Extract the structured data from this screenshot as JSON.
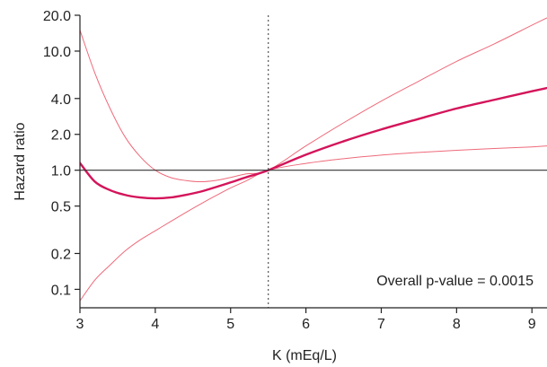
{
  "chart_data": {
    "type": "line",
    "xlabel": "K (mEq/L)",
    "ylabel": "Hazard ratio",
    "x_scale": "linear",
    "y_scale": "log",
    "xlim": [
      3,
      9.2
    ],
    "ylim": [
      0.07,
      20
    ],
    "x_ticks": [
      3,
      4,
      5,
      6,
      7,
      8,
      9
    ],
    "x_tick_labels": [
      "3",
      "4",
      "5",
      "6",
      "7",
      "8",
      "9"
    ],
    "y_ticks": [
      0.1,
      0.2,
      0.5,
      1.0,
      2.0,
      4.0,
      10.0,
      20.0
    ],
    "y_tick_labels": [
      "0.1",
      "0.2",
      "0.5",
      "1.0",
      "2.0",
      "4.0",
      "10.0",
      "20.0"
    ],
    "reference_line": {
      "y": 1.0
    },
    "vertical_reference": {
      "x": 5.5,
      "style": "dotted"
    },
    "annotation": "Overall p-value = 0.0015",
    "grid": false,
    "colors": {
      "estimate": "#d4145a",
      "ci": "#ee6a7a",
      "reference": "#333333",
      "axis": "#222222"
    },
    "series": [
      {
        "role": "estimate",
        "x": [
          3.0,
          3.2,
          3.4,
          3.6,
          3.8,
          4.0,
          4.2,
          4.4,
          4.6,
          4.8,
          5.0,
          5.2,
          5.5,
          6.0,
          6.5,
          7.0,
          7.5,
          8.0,
          8.5,
          9.0,
          9.2
        ],
        "y": [
          1.15,
          0.8,
          0.68,
          0.62,
          0.59,
          0.58,
          0.59,
          0.62,
          0.66,
          0.72,
          0.79,
          0.87,
          1.0,
          1.35,
          1.75,
          2.2,
          2.7,
          3.3,
          3.9,
          4.6,
          4.9
        ]
      },
      {
        "role": "ci-upper",
        "x": [
          3.0,
          3.2,
          3.4,
          3.6,
          3.8,
          4.0,
          4.2,
          4.4,
          4.6,
          4.8,
          5.0,
          5.2,
          5.5,
          6.0,
          6.5,
          7.0,
          7.5,
          8.0,
          8.5,
          9.0,
          9.2
        ],
        "y": [
          15.0,
          6.5,
          3.3,
          1.9,
          1.3,
          1.0,
          0.87,
          0.82,
          0.8,
          0.82,
          0.87,
          0.93,
          1.0,
          1.6,
          2.5,
          3.8,
          5.6,
          8.2,
          11.5,
          16.5,
          19.0
        ]
      },
      {
        "role": "ci-lower",
        "x": [
          3.0,
          3.2,
          3.4,
          3.6,
          3.8,
          4.0,
          4.2,
          4.4,
          4.6,
          4.8,
          5.0,
          5.2,
          5.5,
          6.0,
          6.5,
          7.0,
          7.5,
          8.0,
          8.5,
          9.0,
          9.2
        ],
        "y": [
          0.08,
          0.12,
          0.16,
          0.21,
          0.26,
          0.31,
          0.37,
          0.44,
          0.52,
          0.61,
          0.71,
          0.81,
          1.0,
          1.14,
          1.25,
          1.34,
          1.41,
          1.47,
          1.52,
          1.57,
          1.6
        ]
      }
    ]
  }
}
